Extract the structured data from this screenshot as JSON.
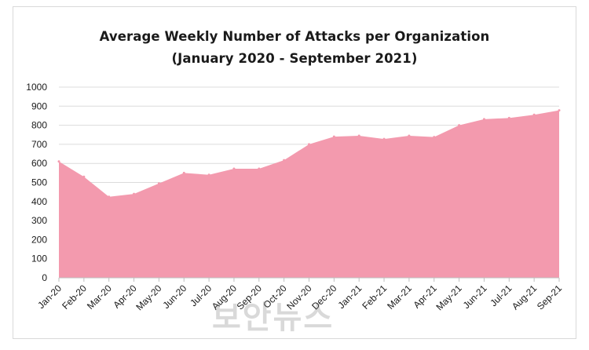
{
  "chart_data": {
    "type": "area",
    "title_line_1": "Average Weekly Number of Attacks per Organization",
    "title_line_2": "(January 2020 - September 2021)",
    "xlabel": "",
    "ylabel": "",
    "categories": [
      "Jan-20",
      "Feb-20",
      "Mar-20",
      "Apr-20",
      "May-20",
      "Jun-20",
      "Jul-20",
      "Aug-20",
      "Sep-20",
      "Oct-20",
      "Nov-20",
      "Dec-20",
      "Jan-21",
      "Feb-21",
      "Mar-21",
      "Apr-21",
      "May-21",
      "Jun-21",
      "Jul-21",
      "Aug-21",
      "Sep-21"
    ],
    "values": [
      610,
      530,
      425,
      440,
      495,
      550,
      540,
      572,
      572,
      617,
      700,
      740,
      745,
      728,
      745,
      738,
      800,
      832,
      838,
      855,
      878
    ],
    "ylim": [
      0,
      1000
    ],
    "yticks": [
      0,
      100,
      200,
      300,
      400,
      500,
      600,
      700,
      800,
      900,
      1000
    ],
    "grid": true,
    "legend": "none",
    "colors": {
      "area": "#f39aae",
      "grid": "#dcdcdc",
      "axis": "#bfbfbf",
      "text": "#1a1a1a"
    }
  },
  "watermark": "보안뉴스"
}
